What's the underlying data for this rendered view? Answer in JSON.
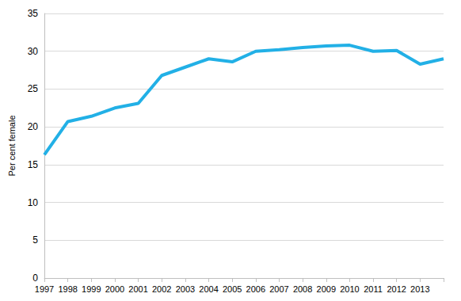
{
  "chart_data": {
    "type": "line",
    "y_label": "Per cent female",
    "categories": [
      "1997",
      "1998",
      "1999",
      "2000",
      "2001",
      "2002",
      "2003",
      "2004",
      "2005",
      "2006",
      "2007",
      "2008",
      "2009",
      "2010",
      "2011",
      "2012",
      "2013",
      null
    ],
    "values": [
      16.3,
      20.7,
      21.4,
      22.5,
      23.1,
      26.8,
      27.9,
      29.0,
      28.6,
      30.0,
      30.2,
      30.5,
      30.7,
      30.8,
      30.0,
      30.1,
      28.3,
      29.0
    ],
    "color": "#22b0e6",
    "ylim": [
      0,
      35
    ],
    "yticks": [
      0,
      5,
      10,
      15,
      20,
      25,
      30,
      35
    ],
    "grid": true
  }
}
